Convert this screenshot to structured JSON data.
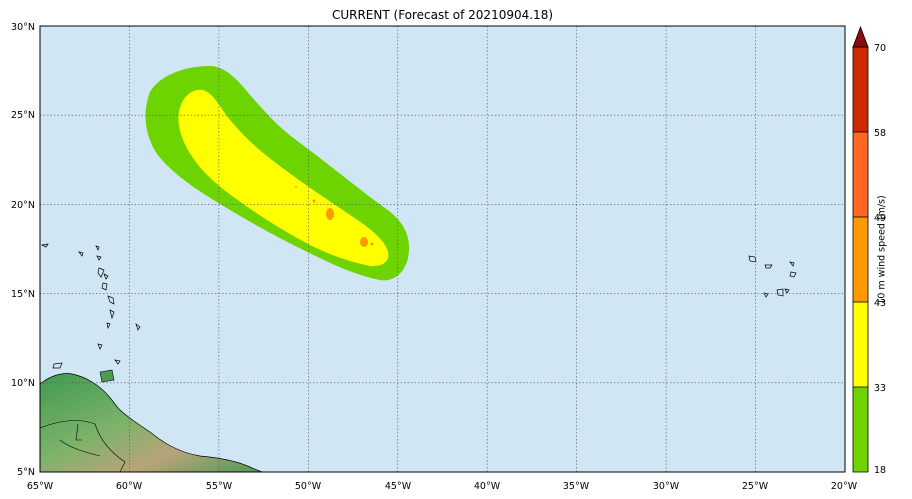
{
  "title": "CURRENT (Forecast of 20210904.18)",
  "colorbar": {
    "label": "10 m wind speed (m/s)",
    "levels": [
      "18",
      "33",
      "43",
      "49",
      "58",
      "70"
    ],
    "colors": [
      "#6ed400",
      "#ffff00",
      "#ff9900",
      "#ff6622",
      "#cc2a00",
      "#8a0c0c"
    ]
  },
  "map": {
    "ocean_color": "#d0e6f4",
    "lon_labels": [
      "65°W",
      "60°W",
      "55°W",
      "50°W",
      "45°W",
      "40°W",
      "35°W",
      "30°W",
      "25°W",
      "20°W"
    ],
    "lat_labels": [
      "5°N",
      "10°N",
      "15°N",
      "20°N",
      "25°N",
      "30°N"
    ]
  }
}
